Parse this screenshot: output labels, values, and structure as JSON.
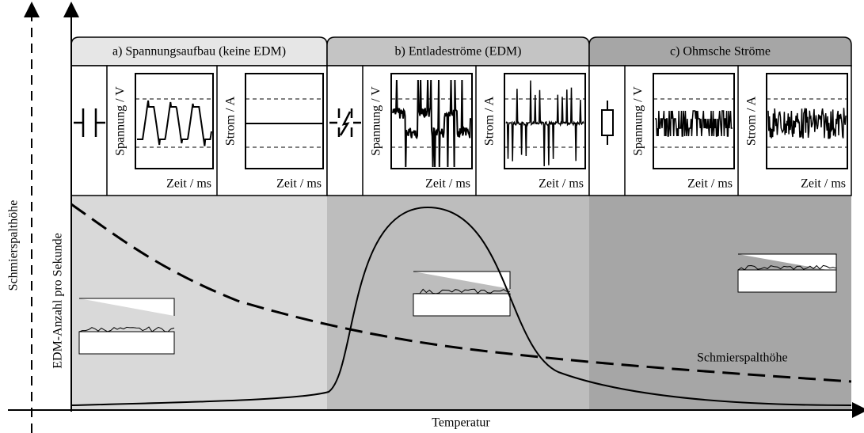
{
  "axes": {
    "y_outer": "Schmierspalthöhe",
    "y_inner": "EDM-Anzahl pro Sekunde",
    "x": "Temperatur"
  },
  "sections": [
    {
      "title": "a) Spannungsaufbau (keine EDM)",
      "panels": [
        {
          "y_label": "Spannung / V",
          "x_label": "Zeit / ms"
        },
        {
          "y_label": "Strom / A",
          "x_label": "Zeit / ms"
        }
      ]
    },
    {
      "title": "b) Entladeströme (EDM)",
      "panels": [
        {
          "y_label": "Spannung / V",
          "x_label": "Zeit / ms"
        },
        {
          "y_label": "Strom / A",
          "x_label": "Zeit / ms"
        }
      ]
    },
    {
      "title": "c) Ohmsche Ströme",
      "panels": [
        {
          "y_label": "Spannung / V",
          "x_label": "Zeit / ms"
        },
        {
          "y_label": "Strom / A",
          "x_label": "Zeit / ms"
        }
      ]
    }
  ],
  "curve_label": "Schmierspalthöhe"
}
